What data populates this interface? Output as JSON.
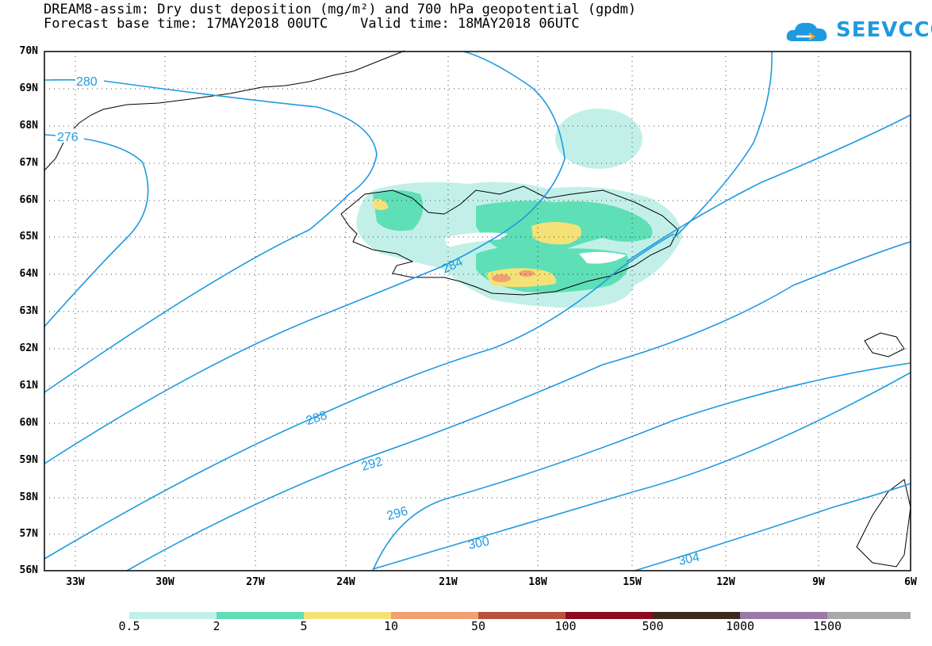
{
  "title": {
    "line1": "DREAM8-assim: Dry dust deposition (mg/m²) and 700 hPa geopotential (gpdm)",
    "line2": "Forecast base time: 17MAY2018 00UTC    Valid time: 18MAY2018 06UTC"
  },
  "logo": {
    "text": "SEEVCCC",
    "color": "#1f9ae0"
  },
  "axes": {
    "lat_labels": [
      "70N",
      "69N",
      "68N",
      "67N",
      "66N",
      "65N",
      "64N",
      "63N",
      "62N",
      "61N",
      "60N",
      "59N",
      "58N",
      "57N",
      "56N"
    ],
    "lon_labels": [
      "33W",
      "30W",
      "27W",
      "24W",
      "21W",
      "18W",
      "15W",
      "12W",
      "9W",
      "6W"
    ]
  },
  "contour_labels": [
    "280",
    "276",
    "284",
    "288",
    "292",
    "296",
    "300",
    "304"
  ],
  "colorbar": {
    "labels": [
      "0.5",
      "2",
      "5",
      "10",
      "50",
      "100",
      "500",
      "1000",
      "1500"
    ],
    "colors": [
      "#c2f0e8",
      "#5fdfb6",
      "#f5e277",
      "#f0a071",
      "#b8523f",
      "#8e0a22",
      "#3a2a1e",
      "#9a7aa6",
      "#a9a9a9"
    ]
  },
  "colors": {
    "contour": "#1f9ae0",
    "frame": "#000000"
  }
}
